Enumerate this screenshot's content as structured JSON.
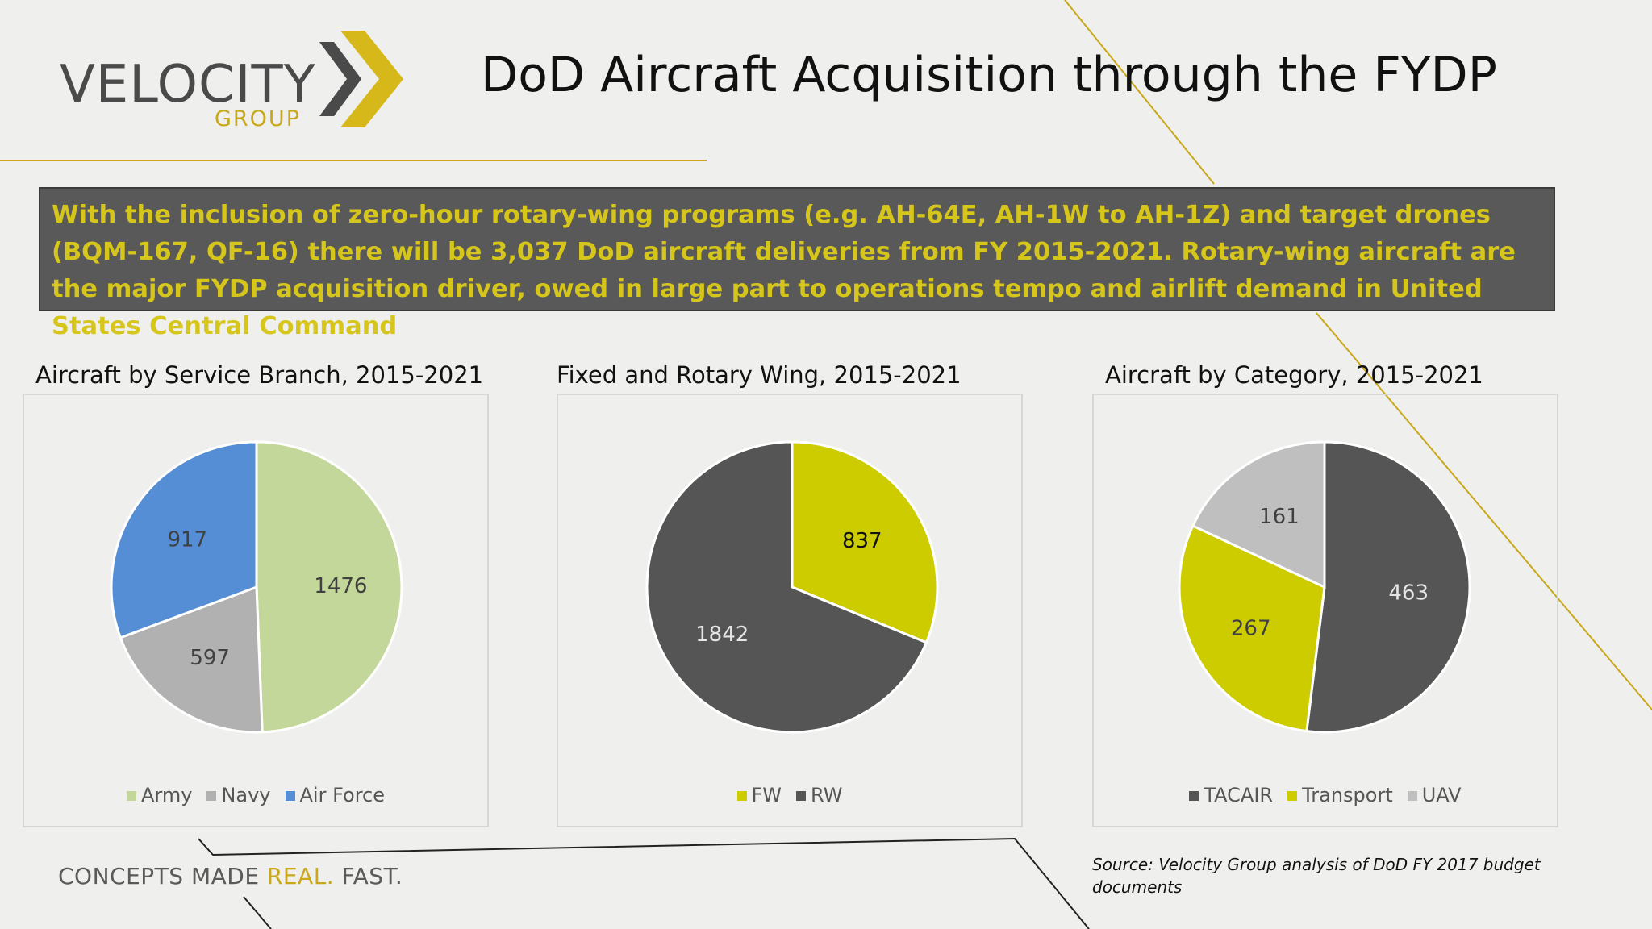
{
  "logo": {
    "name": "VELOCITY",
    "sub": "GROUP"
  },
  "title": "DoD Aircraft Acquisition through the FYDP",
  "banner": "With the inclusion of zero-hour rotary-wing programs (e.g. AH-64E, AH-1W to AH-1Z) and target drones (BQM-167, QF-16) there will be 3,037 DoD aircraft deliveries from FY 2015-2021.  Rotary-wing aircraft are the major FYDP acquisition driver, owed in large part to operations tempo and airlift demand in United States Central Command",
  "tagline": {
    "prefix": "CONCEPTS MADE ",
    "highlight": "REAL.",
    "suffix": " FAST."
  },
  "source": "Source: Velocity Group analysis of DoD FY 2017 budget documents",
  "colors": {
    "army": "#c4d79b",
    "navy": "#b1b1b1",
    "air_force": "#558ed5",
    "lime": "#cccc00",
    "charcoal": "#555555",
    "light_gray": "#bfbfbf",
    "gold": "#c9a81a"
  },
  "chart_data": [
    {
      "type": "pie",
      "title": "Aircraft by Service Branch, 2015-2021",
      "categories": [
        "Army",
        "Navy",
        "Air Force"
      ],
      "values": [
        1476,
        597,
        917
      ],
      "colors": [
        "#c4d79b",
        "#b1b1b1",
        "#558ed5"
      ],
      "label_colors": [
        "#404040",
        "#404040",
        "#404040"
      ],
      "legend": "bottom"
    },
    {
      "type": "pie",
      "title": "Fixed and Rotary Wing, 2015-2021",
      "categories": [
        "FW",
        "RW"
      ],
      "values": [
        837,
        1842
      ],
      "colors": [
        "#cccc00",
        "#555555"
      ],
      "label_colors": [
        "#111111",
        "#e6e6e6"
      ],
      "legend": "bottom"
    },
    {
      "type": "pie",
      "title": "Aircraft by Category, 2015-2021",
      "categories": [
        "TACAIR",
        "Transport",
        "UAV"
      ],
      "values": [
        463,
        267,
        161
      ],
      "colors": [
        "#555555",
        "#cccc00",
        "#bfbfbf"
      ],
      "label_colors": [
        "#e6e6e6",
        "#404040",
        "#404040"
      ],
      "legend": "bottom"
    }
  ]
}
